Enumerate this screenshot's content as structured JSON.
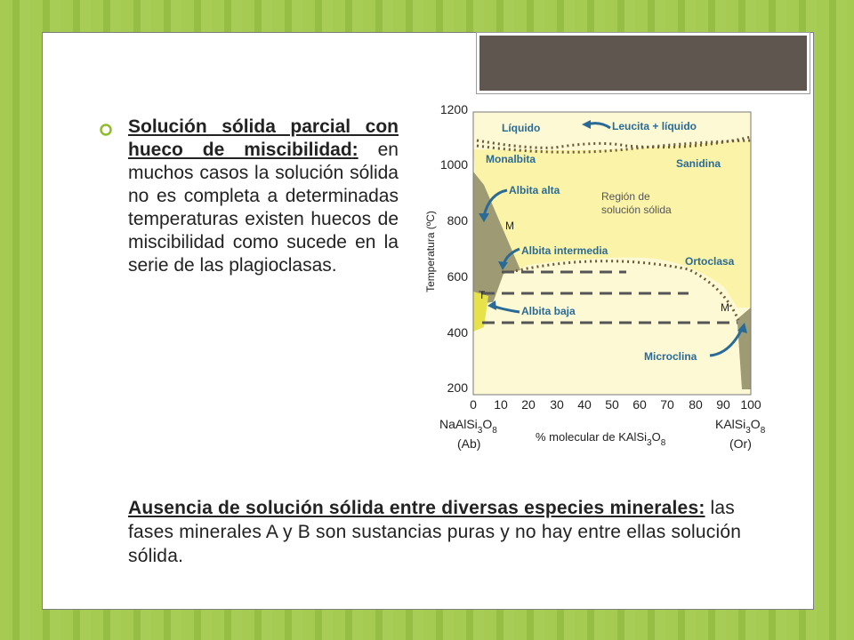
{
  "bullet": {
    "title": "Solución sólida parcial con hueco de miscibilidad",
    "title_punct": ":",
    "body": " en muchos casos la solución sólida no es completa a determinadas temperaturas existen huecos de miscibilidad como sucede en la serie de las plagioclasas."
  },
  "bottom": {
    "title": "Ausencia de solución sólida entre diversas especies minerales:",
    "body": " las fases minerales A y B son sustancias puras y no hay entre ellas solución sólida."
  },
  "diagram": {
    "ylabel": "Temperatura (ºC)",
    "xlabel_main": "% molecular de KAlSi",
    "xlabel_sub1": "3",
    "xlabel_mid": "O",
    "xlabel_sub2": "8",
    "y_ticks": [
      "1200",
      "1000",
      "800",
      "600",
      "400",
      "200"
    ],
    "x_ticks": [
      "0",
      "10",
      "20",
      "30",
      "40",
      "50",
      "60",
      "70",
      "80",
      "90",
      "100"
    ],
    "left_end": {
      "formula": "NaAlSi",
      "s1": "3",
      "o": "O",
      "s2": "8",
      "name": "(Ab)"
    },
    "right_end": {
      "formula": "KAlSi",
      "s1": "3",
      "o": "O",
      "s2": "8",
      "name": "(Or)"
    },
    "labels": {
      "liquido": "Líquido",
      "leucita": "Leucita + líquido",
      "monalbita": "Monalbita",
      "sanidina": "Sanidina",
      "albita_alta": "Albita alta",
      "region1": "Región de",
      "region2": "solución sólida",
      "m_left": "M",
      "albita_intermedia": "Albita intermedia",
      "ortoclasa": "Ortoclasa",
      "t": "T",
      "albita_baja": "Albita baja",
      "m_right": "M",
      "microclina": "Microclina"
    },
    "colors": {
      "solid_solution": "#fbf7c2",
      "gap": "#9e9a74",
      "label_blue": "#2a6a96",
      "axis_bg": "#fdf9d4"
    }
  }
}
